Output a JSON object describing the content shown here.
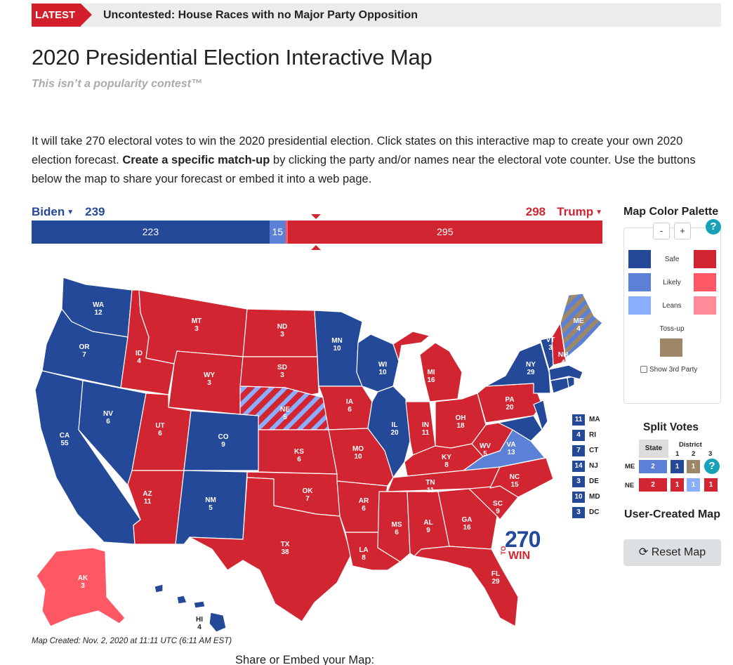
{
  "latest": {
    "tag": "LATEST",
    "headline": "Uncontested: House Races with no Major Party Opposition"
  },
  "title": "2020 Presidential Election Interactive Map",
  "subtitle": "This isn’t a popularity contest™",
  "intro": {
    "part1": "It will take 270 electoral votes to win the 2020 presidential election. Click states on this interactive map to create your own 2020 election forecast. ",
    "bold": "Create a specific match-up",
    "part2": " by clicking the party and/or names near the electoral vote counter. Use the buttons below the map to share your forecast or embed it into a web page."
  },
  "counter": {
    "dem_name": "Biden",
    "dem_total": "239",
    "rep_name": "Trump",
    "rep_total": "298",
    "segments": [
      {
        "label": "223",
        "value": 223,
        "color": "#244999"
      },
      {
        "label": "15",
        "value": 15,
        "color": "#5b80d6"
      },
      {
        "label": "",
        "value": 2,
        "color": "#ff5865"
      },
      {
        "label": "295",
        "value": 295,
        "color": "#d22532"
      }
    ]
  },
  "colors": {
    "safe_d": "#244999",
    "likely_d": "#5b80d6",
    "lean_d": "#8aafff",
    "safe_r": "#d22532",
    "likely_r": "#ff5865",
    "lean_r": "#ff8b98",
    "tossup": "#9e8767"
  },
  "states": [
    {
      "abbr": "WA",
      "ev": "12"
    },
    {
      "abbr": "OR",
      "ev": "7"
    },
    {
      "abbr": "CA",
      "ev": "55"
    },
    {
      "abbr": "ID",
      "ev": "4"
    },
    {
      "abbr": "NV",
      "ev": "6"
    },
    {
      "abbr": "MT",
      "ev": "3"
    },
    {
      "abbr": "WY",
      "ev": "3"
    },
    {
      "abbr": "UT",
      "ev": "6"
    },
    {
      "abbr": "AZ",
      "ev": "11"
    },
    {
      "abbr": "CO",
      "ev": "9"
    },
    {
      "abbr": "NM",
      "ev": "5"
    },
    {
      "abbr": "ND",
      "ev": "3"
    },
    {
      "abbr": "SD",
      "ev": "3"
    },
    {
      "abbr": "NE",
      "ev": "5"
    },
    {
      "abbr": "KS",
      "ev": "6"
    },
    {
      "abbr": "OK",
      "ev": "7"
    },
    {
      "abbr": "TX",
      "ev": "38"
    },
    {
      "abbr": "MN",
      "ev": "10"
    },
    {
      "abbr": "IA",
      "ev": "6"
    },
    {
      "abbr": "MO",
      "ev": "10"
    },
    {
      "abbr": "AR",
      "ev": "6"
    },
    {
      "abbr": "LA",
      "ev": "8"
    },
    {
      "abbr": "WI",
      "ev": "10"
    },
    {
      "abbr": "IL",
      "ev": "20"
    },
    {
      "abbr": "MI",
      "ev": "16"
    },
    {
      "abbr": "IN",
      "ev": "11"
    },
    {
      "abbr": "OH",
      "ev": "18"
    },
    {
      "abbr": "KY",
      "ev": "8"
    },
    {
      "abbr": "TN",
      "ev": "11"
    },
    {
      "abbr": "MS",
      "ev": "6"
    },
    {
      "abbr": "AL",
      "ev": "9"
    },
    {
      "abbr": "GA",
      "ev": "16"
    },
    {
      "abbr": "FL",
      "ev": "29"
    },
    {
      "abbr": "SC",
      "ev": "9"
    },
    {
      "abbr": "NC",
      "ev": "15"
    },
    {
      "abbr": "VA",
      "ev": "13"
    },
    {
      "abbr": "WV",
      "ev": "5"
    },
    {
      "abbr": "PA",
      "ev": "20"
    },
    {
      "abbr": "NY",
      "ev": "29"
    },
    {
      "abbr": "VT",
      "ev": "3"
    },
    {
      "abbr": "NH",
      "ev": "4"
    },
    {
      "abbr": "ME",
      "ev": "4"
    },
    {
      "abbr": "AK",
      "ev": "3"
    },
    {
      "abbr": "HI",
      "ev": "4"
    }
  ],
  "small_states": [
    {
      "ev": "11",
      "abbr": "MA"
    },
    {
      "ev": "4",
      "abbr": "RI"
    },
    {
      "ev": "7",
      "abbr": "CT"
    },
    {
      "ev": "14",
      "abbr": "NJ"
    },
    {
      "ev": "3",
      "abbr": "DE"
    },
    {
      "ev": "10",
      "abbr": "MD"
    },
    {
      "ev": "3",
      "abbr": "DC"
    }
  ],
  "logo": {
    "number": "270",
    "to": "TO",
    "win": "WIN"
  },
  "created": "Map Created: Nov. 2, 2020 at 11:11 UTC (6:11 AM EST)",
  "share": "Share or Embed your Map:",
  "palette": {
    "title": "Map Color Palette",
    "minus": "-",
    "plus": "+",
    "help": "?",
    "safe": "Safe",
    "likely": "Likely",
    "leans": "Leans",
    "tossup": "Toss-up",
    "show3rd": "Show 3rd Party"
  },
  "split": {
    "title": "Split Votes",
    "state": "State",
    "district": "District",
    "d1": "1",
    "d2": "2",
    "d3": "3",
    "help": "?",
    "me": {
      "label": "ME",
      "state": "2",
      "d1": "1",
      "d2": "1"
    },
    "ne": {
      "label": "NE",
      "state": "2",
      "d1": "1",
      "d2": "1",
      "d3": "1"
    }
  },
  "user_created": "User-Created Map",
  "reset": "⟳ Reset Map"
}
